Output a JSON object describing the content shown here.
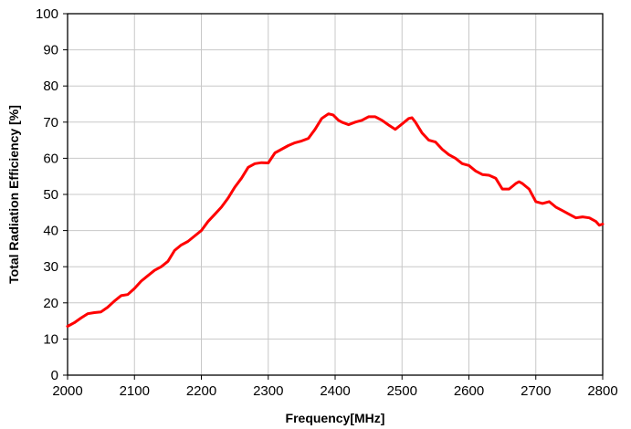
{
  "chart_data": {
    "type": "line",
    "title": "",
    "xlabel": "Frequency[MHz]",
    "ylabel": "Total Radiation Efficiency [%]",
    "xlim": [
      2000,
      2800
    ],
    "ylim": [
      0,
      100
    ],
    "xticks": [
      2000,
      2100,
      2200,
      2300,
      2400,
      2500,
      2600,
      2700,
      2800
    ],
    "yticks": [
      0,
      10,
      20,
      30,
      40,
      50,
      60,
      70,
      80,
      90,
      100
    ],
    "grid": true,
    "legend": "none",
    "series": [
      {
        "color": "#ff0000",
        "x": [
          2000,
          2010,
          2020,
          2030,
          2040,
          2050,
          2060,
          2070,
          2080,
          2090,
          2100,
          2110,
          2120,
          2130,
          2140,
          2150,
          2160,
          2170,
          2180,
          2190,
          2200,
          2210,
          2220,
          2230,
          2240,
          2250,
          2260,
          2270,
          2280,
          2290,
          2300,
          2310,
          2320,
          2330,
          2340,
          2350,
          2360,
          2370,
          2380,
          2390,
          2397,
          2405,
          2410,
          2420,
          2430,
          2440,
          2450,
          2460,
          2470,
          2480,
          2490,
          2500,
          2510,
          2515,
          2520,
          2530,
          2540,
          2550,
          2560,
          2570,
          2580,
          2590,
          2600,
          2610,
          2620,
          2630,
          2640,
          2650,
          2660,
          2670,
          2675,
          2680,
          2690,
          2700,
          2710,
          2720,
          2730,
          2740,
          2750,
          2760,
          2770,
          2780,
          2790,
          2795,
          2800
        ],
        "y": [
          13.5,
          14.5,
          15.8,
          17.0,
          17.3,
          17.5,
          18.8,
          20.5,
          22.0,
          22.3,
          24.0,
          26.0,
          27.5,
          29.0,
          30.0,
          31.5,
          34.5,
          36.0,
          37.0,
          38.5,
          40.0,
          42.5,
          44.5,
          46.5,
          49.0,
          52.0,
          54.5,
          57.5,
          58.5,
          58.8,
          58.7,
          61.5,
          62.5,
          63.5,
          64.3,
          64.8,
          65.5,
          68.0,
          71.0,
          72.3,
          72.0,
          70.5,
          70.0,
          69.3,
          70.0,
          70.5,
          71.5,
          71.5,
          70.5,
          69.2,
          68.0,
          69.5,
          71.0,
          71.2,
          70.0,
          67.0,
          65.0,
          64.5,
          62.5,
          61.0,
          60.0,
          58.5,
          58.0,
          56.5,
          55.5,
          55.3,
          54.5,
          51.5,
          51.5,
          53.0,
          53.5,
          53.0,
          51.5,
          48.0,
          47.5,
          48.0,
          46.5,
          45.5,
          44.5,
          43.5,
          43.8,
          43.5,
          42.5,
          41.5,
          41.8
        ]
      }
    ]
  }
}
